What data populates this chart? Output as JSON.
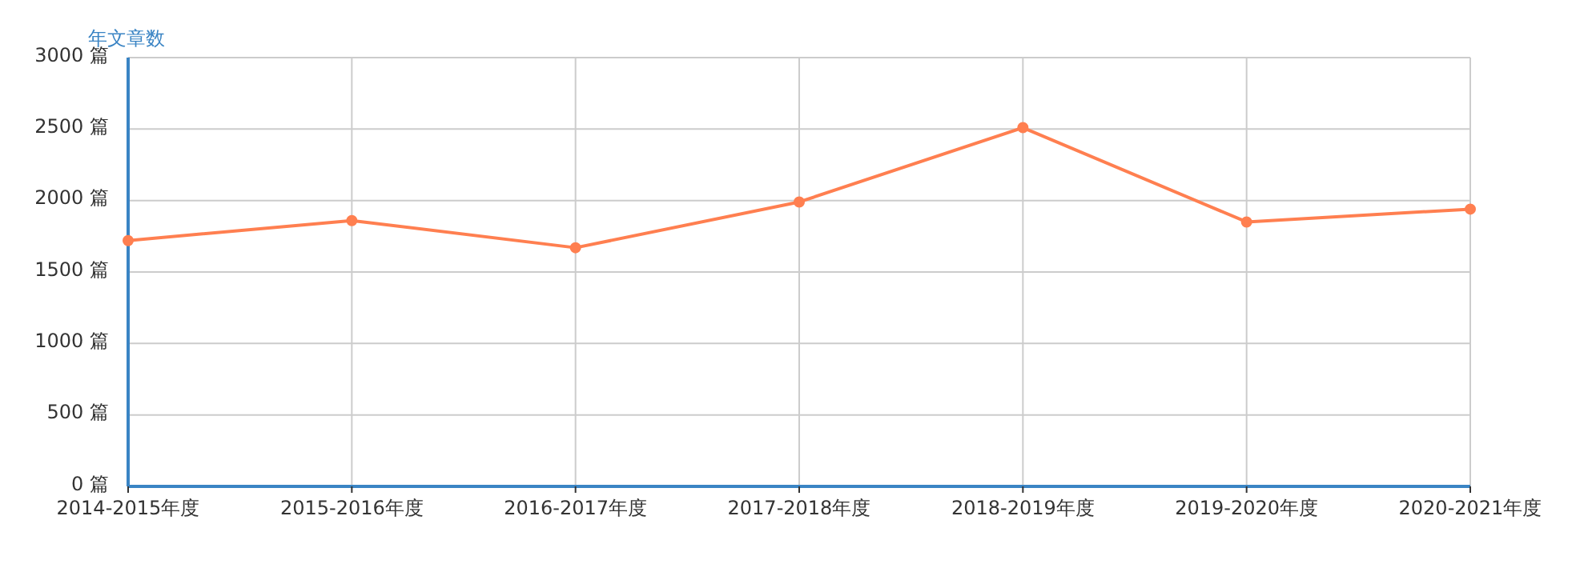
{
  "chart_data": {
    "type": "line",
    "ylabel": "年文章数",
    "categories": [
      "2014-2015年度",
      "2015-2016年度",
      "2016-2017年度",
      "2017-2018年度",
      "2018-2019年度",
      "2019-2020年度",
      "2020-2021年度"
    ],
    "series": [
      {
        "color": "#ff7f50",
        "values": [
          1720,
          1860,
          1670,
          1990,
          2510,
          1850,
          1940
        ]
      }
    ],
    "ylim": [
      0,
      3000
    ],
    "yticks": [
      {
        "value": 0,
        "label": "0 篇"
      },
      {
        "value": 500,
        "label": "500 篇"
      },
      {
        "value": 1000,
        "label": "1000 篇"
      },
      {
        "value": 1500,
        "label": "1500 篇"
      },
      {
        "value": 2000,
        "label": "2000 篇"
      },
      {
        "value": 2500,
        "label": "2500 篇"
      },
      {
        "value": 3000,
        "label": "3000 篇"
      }
    ],
    "grid": true,
    "marker": "circle",
    "line_style": "solid"
  }
}
